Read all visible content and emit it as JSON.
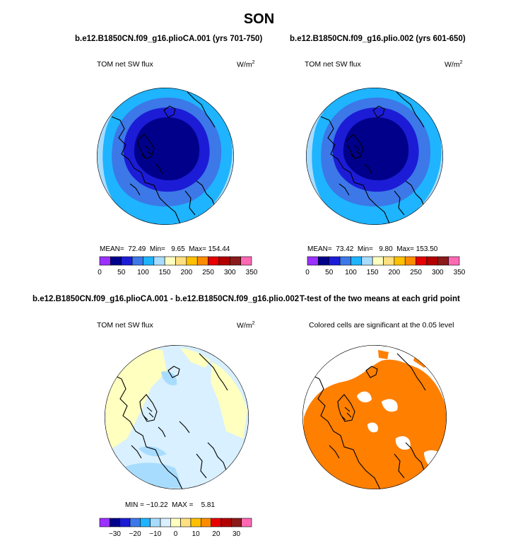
{
  "page_title": "SON",
  "panels": [
    {
      "id": "p1",
      "title": "b.e12.B1850CN.f09_g16.plioCA.001 (yrs 701-750)",
      "field": "TOM net SW flux",
      "units_main": "W/m",
      "units_sup": "2",
      "stats": {
        "mean_label": "MEAN=",
        "mean": "72.49",
        "min_label": "Min=",
        "min": "9.65",
        "max_label": "Max=",
        "max": "154.44"
      }
    },
    {
      "id": "p2",
      "title": "b.e12.B1850CN.f09_g16.plio.002 (yrs 601-650)",
      "field": "TOM net SW flux",
      "units_main": "W/m",
      "units_sup": "2",
      "stats": {
        "mean_label": "MEAN=",
        "mean": "73.42",
        "min_label": "Min=",
        "min": "9.80",
        "max_label": "Max=",
        "max": "153.50"
      }
    },
    {
      "id": "p3",
      "title": "b.e12.B1850CN.f09_g16.plioCA.001 - b.e12.B1850CN.f09_g16.plio.002",
      "field": "TOM net SW flux",
      "units_main": "W/m",
      "units_sup": "2",
      "stats": {
        "min_label": "MIN =",
        "min": "−10.22",
        "max_label": "MAX =",
        "max": "5.81"
      }
    },
    {
      "id": "p4",
      "title": "T-test of the two means at each grid point",
      "field": "Colored cells are significant at the 0.05 level"
    }
  ],
  "colors": {
    "abs_scale": [
      "#9b30ff",
      "#00008b",
      "#1c1cd6",
      "#3c78e8",
      "#1eb4ff",
      "#a8dcff",
      "#ffffc0",
      "#ffe080",
      "#ffc000",
      "#ff8c00",
      "#e60000",
      "#b20000",
      "#8b1a1a",
      "#ff69b4"
    ],
    "diff_scale": [
      "#9b30ff",
      "#00008b",
      "#1c1cd6",
      "#3c78e8",
      "#1eb4ff",
      "#a8dcff",
      "#d8f0ff",
      "#ffffc0",
      "#ffe080",
      "#ffc000",
      "#ff8c00",
      "#e60000",
      "#b20000",
      "#8b1a1a",
      "#ff69b4"
    ],
    "sig": "#ff7f00",
    "coast": "#000000"
  },
  "chart_data": [
    {
      "type": "heatmap",
      "projection": "north polar stereographic",
      "title": "b.e12.B1850CN.f09_g16.plioCA.001 (yrs 701-750)",
      "variable": "TOM net SW flux",
      "units": "W/m2",
      "colorbar_ticks": [
        "0",
        "50",
        "100",
        "150",
        "200",
        "250",
        "300",
        "350"
      ],
      "levels": [
        0,
        25,
        50,
        75,
        100,
        125,
        150,
        175,
        200,
        225,
        250,
        275,
        300,
        325,
        350
      ],
      "stats": {
        "mean": 72.49,
        "min": 9.65,
        "max": 154.44
      }
    },
    {
      "type": "heatmap",
      "projection": "north polar stereographic",
      "title": "b.e12.B1850CN.f09_g16.plio.002 (yrs 601-650)",
      "variable": "TOM net SW flux",
      "units": "W/m2",
      "colorbar_ticks": [
        "0",
        "50",
        "100",
        "150",
        "200",
        "250",
        "300",
        "350"
      ],
      "levels": [
        0,
        25,
        50,
        75,
        100,
        125,
        150,
        175,
        200,
        225,
        250,
        275,
        300,
        325,
        350
      ],
      "stats": {
        "mean": 73.42,
        "min": 9.8,
        "max": 153.5
      }
    },
    {
      "type": "heatmap",
      "projection": "north polar stereographic",
      "title": "b.e12.B1850CN.f09_g16.plioCA.001 - b.e12.B1850CN.f09_g16.plio.002",
      "variable": "TOM net SW flux",
      "units": "W/m2",
      "colorbar_ticks": [
        "−30",
        "−20",
        "−10",
        "0",
        "10",
        "20",
        "30"
      ],
      "levels": [
        -35,
        -30,
        -25,
        -20,
        -15,
        -10,
        -5,
        0,
        5,
        10,
        15,
        20,
        25,
        30,
        35
      ],
      "stats": {
        "min": -10.22,
        "max": 5.81
      }
    },
    {
      "type": "heatmap",
      "projection": "north polar stereographic",
      "title": "T-test of the two means at each grid point",
      "subtitle": "Colored cells are significant at the 0.05 level"
    }
  ]
}
